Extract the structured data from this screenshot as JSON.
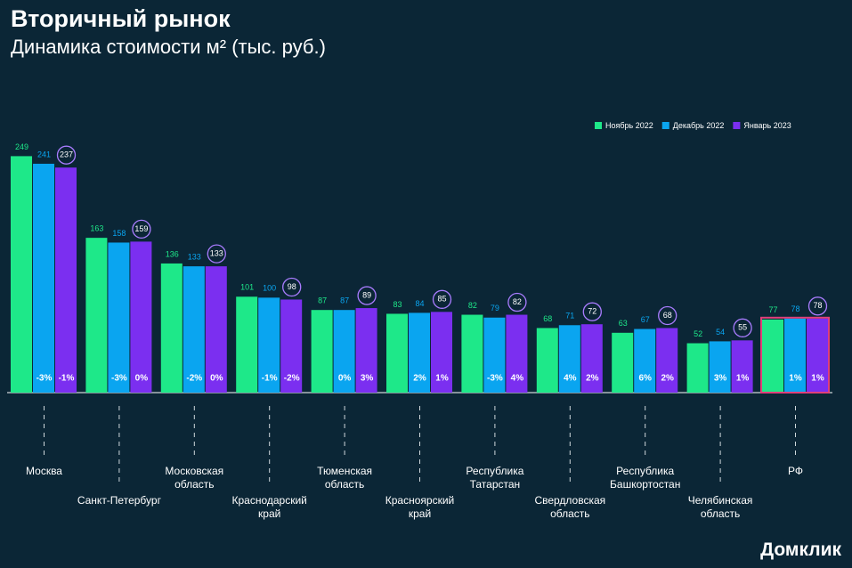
{
  "chart_data": {
    "type": "bar",
    "title": "Вторичный рынок",
    "subtitle": "Динамика стоимости м² (тыс. руб.)",
    "brand": "Домклик",
    "categories": [
      "Москва",
      "Санкт-Петербург",
      "Московская\nобласть",
      "Краснодарский\nкрай",
      "Тюменская\nобласть",
      "Красноярский\nкрай",
      "Республика\nТатарстан",
      "Свердловская\nобласть",
      "Республика\nБашкортостан",
      "Челябинская\nобласть",
      "РФ"
    ],
    "series": [
      {
        "name": "Ноябрь 2022",
        "color": "#1ee889",
        "values": [
          249,
          163,
          136,
          101,
          87,
          83,
          82,
          68,
          63,
          52,
          77
        ]
      },
      {
        "name": "Декабрь 2022",
        "color": "#0aa5f0",
        "values": [
          241,
          158,
          133,
          100,
          87,
          84,
          79,
          71,
          67,
          54,
          78
        ],
        "change_labels": [
          "-3%",
          "-3%",
          "-2%",
          "-1%",
          "0%",
          "2%",
          "-3%",
          "4%",
          "6%",
          "3%",
          "1%"
        ]
      },
      {
        "name": "Январь 2023",
        "color": "#7b2ff0",
        "values": [
          237,
          159,
          133,
          98,
          89,
          85,
          82,
          72,
          68,
          55,
          78
        ],
        "change_labels": [
          "-1%",
          "0%",
          "0%",
          "-2%",
          "3%",
          "1%",
          "4%",
          "2%",
          "2%",
          "1%",
          "1%"
        ]
      }
    ],
    "ylim": [
      0,
      300
    ],
    "legend": "top-right"
  }
}
